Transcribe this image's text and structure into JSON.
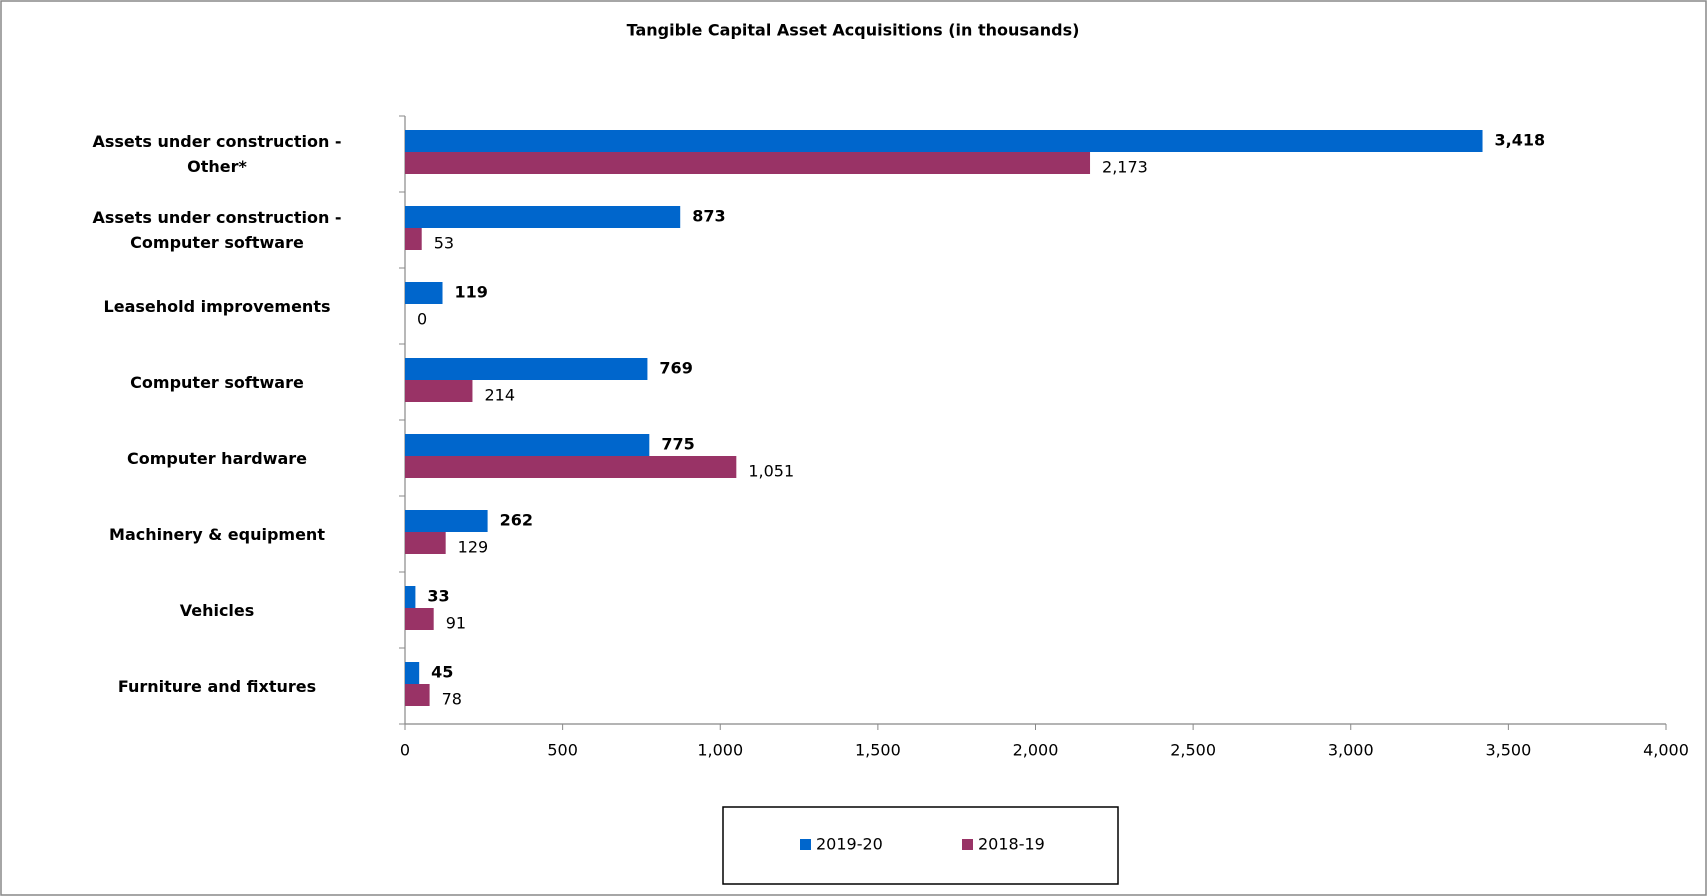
{
  "chart_data": {
    "type": "hbar",
    "title": "Tangible Capital Asset Acquisitions (in thousands)",
    "categories": [
      "Assets under construction - Other*",
      "Assets under construction - Computer software",
      "Leasehold improvements",
      "Computer software",
      "Computer hardware",
      "Machinery & equipment",
      "Vehicles",
      "Furniture and fixtures"
    ],
    "series": [
      {
        "name": "2019-20",
        "color": "#0066cc",
        "values": [
          3418,
          873,
          119,
          769,
          775,
          262,
          33,
          45
        ],
        "value_labels": [
          "3,418",
          "873",
          "119",
          "769",
          "775",
          "262",
          "33",
          "45"
        ]
      },
      {
        "name": "2018-19",
        "color": "#993366",
        "values": [
          2173,
          53,
          0,
          214,
          1051,
          129,
          91,
          78
        ],
        "value_labels": [
          "2,173",
          "53",
          "0",
          "214",
          "1,051",
          "129",
          "91",
          "78"
        ]
      }
    ],
    "xlim": [
      0,
      4000
    ],
    "xticks": [
      0,
      500,
      {
        "value": 1000,
        "label": "1,000"
      },
      {
        "value": 1500,
        "label": "1,500"
      },
      {
        "value": 2000,
        "label": "2,000"
      },
      {
        "value": 2500,
        "label": "2,500"
      },
      {
        "value": 3000,
        "label": "3,000"
      },
      {
        "value": 3500,
        "label": "3,500"
      },
      {
        "value": 4000,
        "label": "4,000"
      }
    ],
    "legend": "bottom"
  }
}
